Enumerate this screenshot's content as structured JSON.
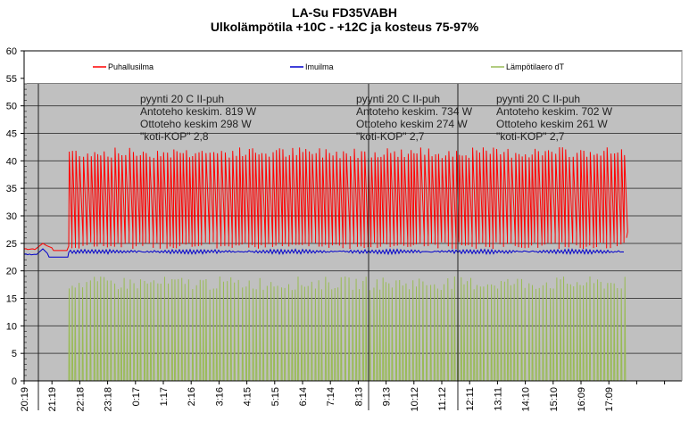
{
  "chart_data": {
    "type": "line",
    "title": "LA-Su FD35VABH",
    "subtitle": "Ulkolämpötila  +10C - +12C ja kosteus 75-97%",
    "xlabel": "",
    "ylabel": "",
    "ylim": [
      0,
      60
    ],
    "yticks": [
      "0",
      "5",
      "10",
      "15",
      "20",
      "25",
      "30",
      "35",
      "40",
      "45",
      "50",
      "55",
      "60"
    ],
    "xticks": [
      "20:19",
      "21:19",
      "22:18",
      "23:18",
      "0:17",
      "1:17",
      "2:16",
      "3:16",
      "4:15",
      "5:15",
      "6:14",
      "7:14",
      "8:13",
      "9:13",
      "10:12",
      "11:12",
      "12:11",
      "13:11",
      "14:10",
      "15:10",
      "16:09",
      "17:09"
    ],
    "grid": true,
    "legend": "top",
    "series": [
      {
        "name": "Puhallusilma",
        "color": "#ff0000",
        "baseline": 24,
        "cycling_min": 24,
        "cycling_max": 42
      },
      {
        "name": "Imuilma",
        "color": "#0000cc",
        "baseline": 23,
        "mean": 23.5
      },
      {
        "name": "Lämpötilaero dT",
        "color": "#99bb55",
        "cycling_min": 0,
        "cycling_max": 19
      }
    ],
    "annotations": [
      {
        "lines": [
          "pyynti 20 C II-puh",
          "Antoteho keskim. 819 W",
          "Ottoteho keskim 298 W",
          "\"koti-KOP\" 2,8"
        ]
      },
      {
        "lines": [
          "pyynti 20 C II-puh",
          "Antoteho keskim. 734 W",
          "Ottoteho keskim 274 W",
          "\"koti-KOP\" 2,7"
        ]
      },
      {
        "lines": [
          "pyynti 20 C II-puh",
          "Antoteho keskim. 702 W",
          "Ottoteho keskim 261 W",
          "\"koti-KOP\" 2,7"
        ]
      }
    ],
    "plot_background": "#c0c0c0"
  }
}
